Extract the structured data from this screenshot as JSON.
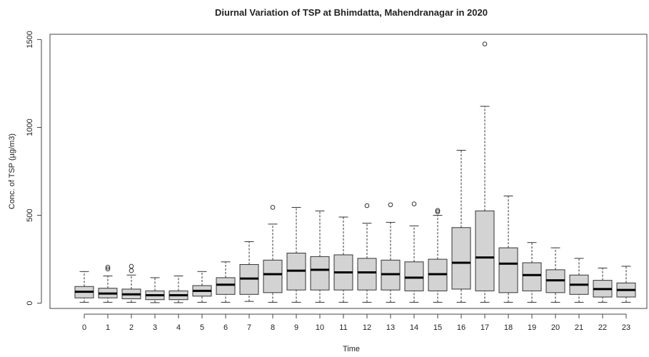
{
  "chart_data": {
    "type": "boxplot",
    "title": "Diurnal Variation of TSP at Bhimdatta, Mahendranagar in 2020",
    "xlabel": "Time",
    "ylabel": "Conc. of TSP (µg/m3)",
    "ylim": [
      -30,
      1530
    ],
    "yticks": [
      0,
      500,
      1000,
      1500
    ],
    "box_fill": "#d3d3d3",
    "categories": [
      "0",
      "1",
      "2",
      "3",
      "4",
      "5",
      "6",
      "7",
      "8",
      "9",
      "10",
      "11",
      "12",
      "13",
      "14",
      "15",
      "16",
      "17",
      "18",
      "19",
      "20",
      "21",
      "22",
      "23"
    ],
    "boxes": [
      {
        "min": 5,
        "q1": 30,
        "median": 65,
        "q3": 95,
        "max": 180,
        "outliers": []
      },
      {
        "min": 5,
        "q1": 30,
        "median": 55,
        "q3": 85,
        "max": 155,
        "outliers": [
          195,
          205
        ]
      },
      {
        "min": 5,
        "q1": 25,
        "median": 50,
        "q3": 80,
        "max": 160,
        "outliers": [
          185,
          210
        ]
      },
      {
        "min": 3,
        "q1": 20,
        "median": 45,
        "q3": 70,
        "max": 145,
        "outliers": []
      },
      {
        "min": 3,
        "q1": 20,
        "median": 45,
        "q3": 70,
        "max": 155,
        "outliers": []
      },
      {
        "min": 5,
        "q1": 40,
        "median": 70,
        "q3": 100,
        "max": 180,
        "outliers": []
      },
      {
        "min": 5,
        "q1": 50,
        "median": 105,
        "q3": 145,
        "max": 235,
        "outliers": []
      },
      {
        "min": 10,
        "q1": 50,
        "median": 140,
        "q3": 220,
        "max": 350,
        "outliers": []
      },
      {
        "min": 5,
        "q1": 60,
        "median": 165,
        "q3": 245,
        "max": 450,
        "outliers": [
          545
        ]
      },
      {
        "min": 5,
        "q1": 75,
        "median": 185,
        "q3": 285,
        "max": 545,
        "outliers": []
      },
      {
        "min": 5,
        "q1": 75,
        "median": 190,
        "q3": 265,
        "max": 525,
        "outliers": []
      },
      {
        "min": 5,
        "q1": 75,
        "median": 175,
        "q3": 275,
        "max": 490,
        "outliers": []
      },
      {
        "min": 5,
        "q1": 75,
        "median": 175,
        "q3": 255,
        "max": 455,
        "outliers": [
          555
        ]
      },
      {
        "min": 5,
        "q1": 75,
        "median": 165,
        "q3": 245,
        "max": 460,
        "outliers": [
          560
        ]
      },
      {
        "min": 5,
        "q1": 70,
        "median": 145,
        "q3": 235,
        "max": 440,
        "outliers": [
          565
        ]
      },
      {
        "min": 5,
        "q1": 70,
        "median": 165,
        "q3": 250,
        "max": 500,
        "outliers": [
          520,
          528
        ]
      },
      {
        "min": 5,
        "q1": 80,
        "median": 230,
        "q3": 430,
        "max": 870,
        "outliers": []
      },
      {
        "min": 5,
        "q1": 70,
        "median": 260,
        "q3": 525,
        "max": 1120,
        "outliers": [
          1475
        ]
      },
      {
        "min": 5,
        "q1": 60,
        "median": 225,
        "q3": 315,
        "max": 610,
        "outliers": []
      },
      {
        "min": 5,
        "q1": 70,
        "median": 160,
        "q3": 230,
        "max": 345,
        "outliers": []
      },
      {
        "min": 5,
        "q1": 60,
        "median": 130,
        "q3": 190,
        "max": 315,
        "outliers": []
      },
      {
        "min": 5,
        "q1": 50,
        "median": 105,
        "q3": 160,
        "max": 255,
        "outliers": []
      },
      {
        "min": 5,
        "q1": 35,
        "median": 80,
        "q3": 130,
        "max": 200,
        "outliers": []
      },
      {
        "min": 5,
        "q1": 35,
        "median": 75,
        "q3": 115,
        "max": 210,
        "outliers": []
      }
    ]
  }
}
